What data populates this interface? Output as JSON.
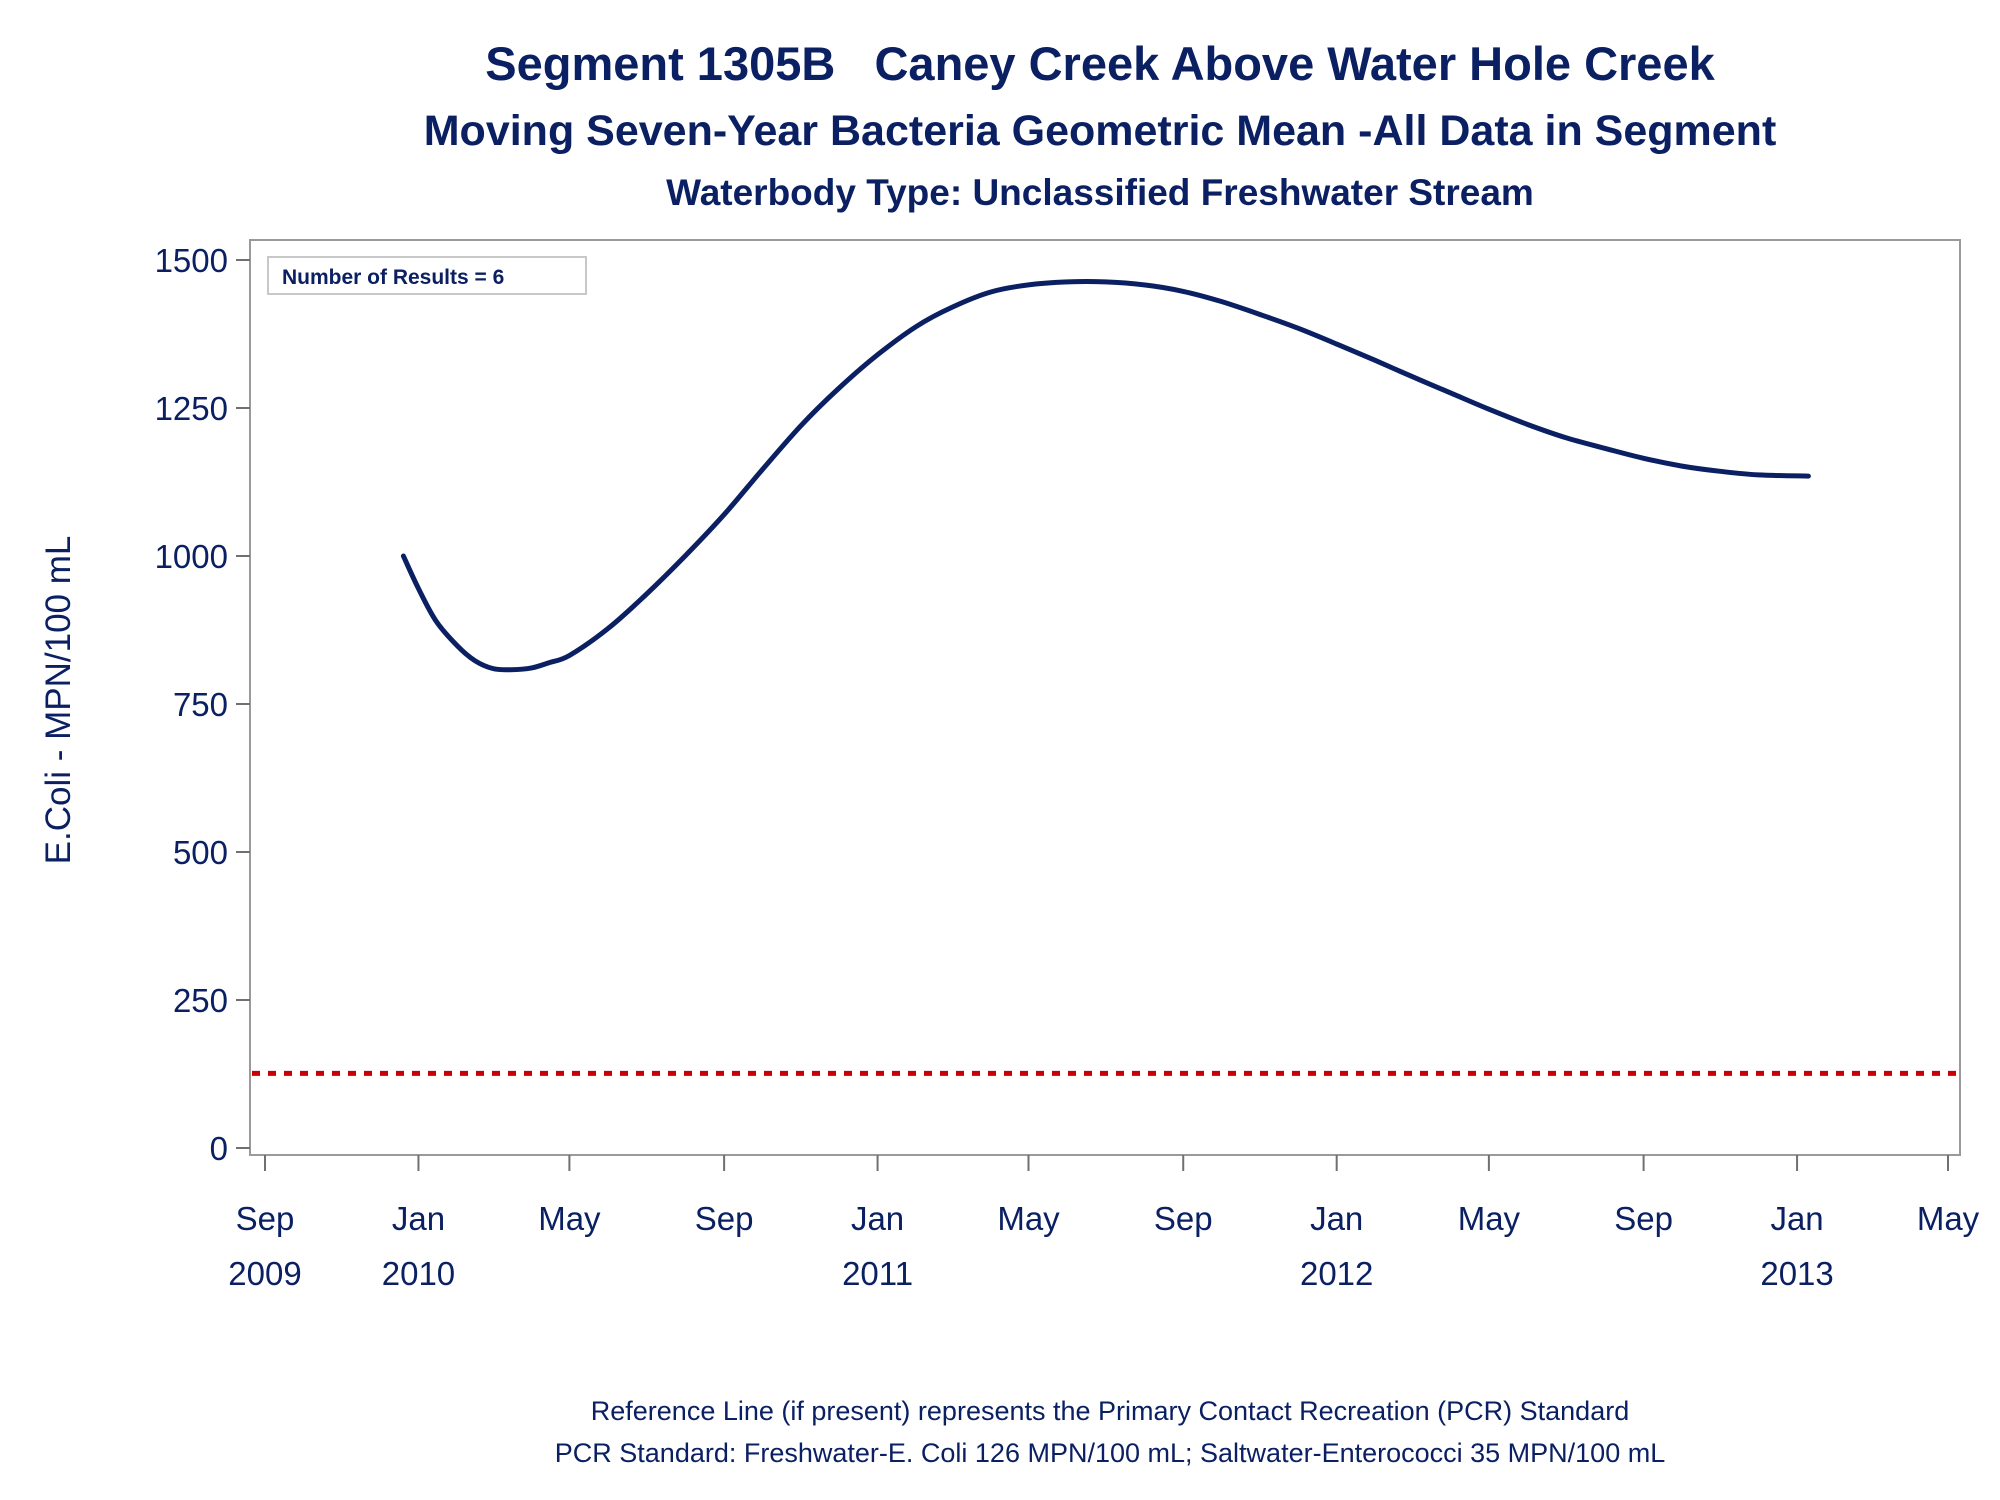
{
  "chart_data": {
    "type": "line",
    "title": "Segment 1305B   Caney Creek Above Water Hole Creek",
    "subtitle": "Moving Seven-Year Bacteria Geometric Mean -All Data in Segment",
    "subtitle2": "Waterbody Type: Unclassified Freshwater Stream",
    "ylabel": "E.Coli - MPN/100 mL",
    "xlabel": "",
    "ylim": [
      0,
      1500
    ],
    "yticks": [
      0,
      250,
      500,
      750,
      1000,
      1250,
      1500
    ],
    "xlim": [
      "2009-09-01",
      "2013-05-01"
    ],
    "xticks": [
      {
        "date": "2009-09-01",
        "month": "Sep",
        "year": "2009"
      },
      {
        "date": "2010-01-01",
        "month": "Jan",
        "year": "2010"
      },
      {
        "date": "2010-05-01",
        "month": "May",
        "year": ""
      },
      {
        "date": "2010-09-01",
        "month": "Sep",
        "year": ""
      },
      {
        "date": "2011-01-01",
        "month": "Jan",
        "year": "2011"
      },
      {
        "date": "2011-05-01",
        "month": "May",
        "year": ""
      },
      {
        "date": "2011-09-01",
        "month": "Sep",
        "year": ""
      },
      {
        "date": "2012-01-01",
        "month": "Jan",
        "year": "2012"
      },
      {
        "date": "2012-05-01",
        "month": "May",
        "year": ""
      },
      {
        "date": "2012-09-01",
        "month": "Sep",
        "year": ""
      },
      {
        "date": "2013-01-01",
        "month": "Jan",
        "year": "2013"
      },
      {
        "date": "2013-05-01",
        "month": "May",
        "year": ""
      }
    ],
    "grid": false,
    "inset_label": "Number of Results = 6",
    "reference_line": {
      "y": 126,
      "color": "#cc0000",
      "style": "dotted"
    },
    "series": [
      {
        "color": "#0b2063",
        "points": [
          {
            "x": "2009-12-20",
            "y": 1000
          },
          {
            "x": "2010-01-01",
            "y": 945
          },
          {
            "x": "2010-01-15",
            "y": 890
          },
          {
            "x": "2010-02-01",
            "y": 848
          },
          {
            "x": "2010-02-15",
            "y": 823
          },
          {
            "x": "2010-03-01",
            "y": 810
          },
          {
            "x": "2010-03-15",
            "y": 808
          },
          {
            "x": "2010-04-01",
            "y": 811
          },
          {
            "x": "2010-04-15",
            "y": 820
          },
          {
            "x": "2010-05-01",
            "y": 832
          },
          {
            "x": "2010-06-01",
            "y": 878
          },
          {
            "x": "2010-07-01",
            "y": 935
          },
          {
            "x": "2010-08-01",
            "y": 1000
          },
          {
            "x": "2010-09-01",
            "y": 1070
          },
          {
            "x": "2010-10-01",
            "y": 1145
          },
          {
            "x": "2010-11-01",
            "y": 1220
          },
          {
            "x": "2010-12-01",
            "y": 1283
          },
          {
            "x": "2011-01-01",
            "y": 1340
          },
          {
            "x": "2011-02-01",
            "y": 1388
          },
          {
            "x": "2011-03-01",
            "y": 1420
          },
          {
            "x": "2011-04-01",
            "y": 1446
          },
          {
            "x": "2011-05-01",
            "y": 1458
          },
          {
            "x": "2011-06-01",
            "y": 1463
          },
          {
            "x": "2011-07-01",
            "y": 1463
          },
          {
            "x": "2011-08-01",
            "y": 1458
          },
          {
            "x": "2011-09-01",
            "y": 1447
          },
          {
            "x": "2011-10-01",
            "y": 1430
          },
          {
            "x": "2011-11-01",
            "y": 1408
          },
          {
            "x": "2011-12-01",
            "y": 1385
          },
          {
            "x": "2012-01-01",
            "y": 1358
          },
          {
            "x": "2012-02-01",
            "y": 1330
          },
          {
            "x": "2012-03-01",
            "y": 1303
          },
          {
            "x": "2012-04-01",
            "y": 1275
          },
          {
            "x": "2012-05-01",
            "y": 1248
          },
          {
            "x": "2012-06-01",
            "y": 1222
          },
          {
            "x": "2012-07-01",
            "y": 1200
          },
          {
            "x": "2012-08-01",
            "y": 1182
          },
          {
            "x": "2012-09-01",
            "y": 1165
          },
          {
            "x": "2012-10-01",
            "y": 1152
          },
          {
            "x": "2012-11-01",
            "y": 1143
          },
          {
            "x": "2012-12-01",
            "y": 1137
          },
          {
            "x": "2013-01-10",
            "y": 1135
          }
        ]
      }
    ],
    "footnotes": [
      "Reference Line (if present) represents the Primary Contact Recreation (PCR) Standard",
      "PCR Standard: Freshwater-E. Coli 126 MPN/100 mL; Saltwater-Enterococci 35 MPN/100 mL"
    ]
  }
}
